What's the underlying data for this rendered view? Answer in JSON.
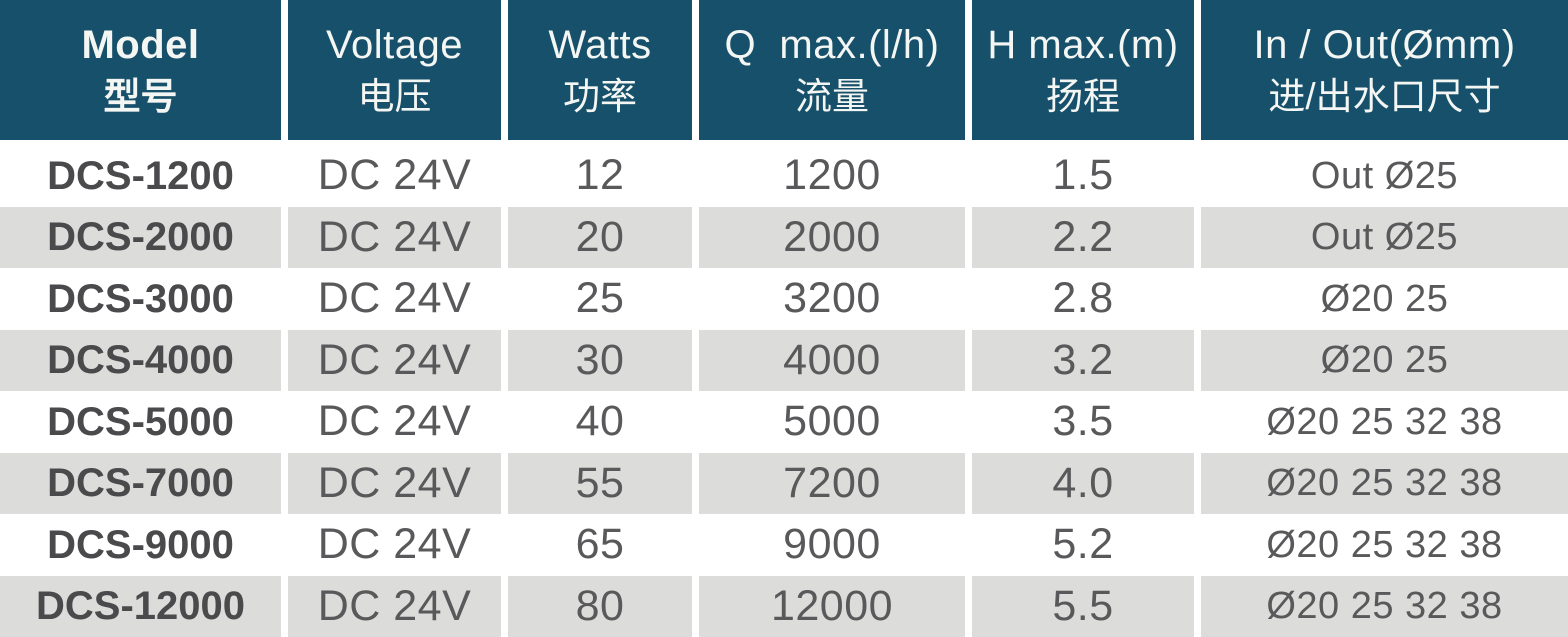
{
  "table": {
    "columns": [
      {
        "en": "Model",
        "zh": "型号"
      },
      {
        "en": "Voltage",
        "zh": "电压"
      },
      {
        "en": "Watts",
        "zh": "功率"
      },
      {
        "en": "Q  max.(l/h)",
        "zh": "流量"
      },
      {
        "en": "H max.(m)",
        "zh": "扬程"
      },
      {
        "en": "In / Out(Ømm)",
        "zh": "进/出水口尺寸"
      }
    ],
    "rows": [
      {
        "model": "DCS-1200",
        "voltage": "DC 24V",
        "watts": "12",
        "q_max": "1200",
        "h_max": "1.5",
        "in_out": "Out Ø25"
      },
      {
        "model": "DCS-2000",
        "voltage": "DC 24V",
        "watts": "20",
        "q_max": "2000",
        "h_max": "2.2",
        "in_out": "Out Ø25"
      },
      {
        "model": "DCS-3000",
        "voltage": "DC 24V",
        "watts": "25",
        "q_max": "3200",
        "h_max": "2.8",
        "in_out": "Ø20 25"
      },
      {
        "model": "DCS-4000",
        "voltage": "DC 24V",
        "watts": "30",
        "q_max": "4000",
        "h_max": "3.2",
        "in_out": "Ø20 25"
      },
      {
        "model": "DCS-5000",
        "voltage": "DC 24V",
        "watts": "40",
        "q_max": "5000",
        "h_max": "3.5",
        "in_out": "Ø20 25 32 38"
      },
      {
        "model": "DCS-7000",
        "voltage": "DC 24V",
        "watts": "55",
        "q_max": "7200",
        "h_max": "4.0",
        "in_out": "Ø20 25 32 38"
      },
      {
        "model": "DCS-9000",
        "voltage": "DC 24V",
        "watts": "65",
        "q_max": "9000",
        "h_max": "5.2",
        "in_out": "Ø20 25 32 38"
      },
      {
        "model": "DCS-12000",
        "voltage": "DC 24V",
        "watts": "80",
        "q_max": "12000",
        "h_max": "5.5",
        "in_out": "Ø20 25 32 38"
      }
    ]
  },
  "colors": {
    "header_bg": "#17506b",
    "header_text": "#f4f6f3",
    "row_bg": "#ffffff",
    "row_alt_bg": "#dcdcda",
    "cell_text": "#59595b",
    "model_text": "#4a4a4c"
  }
}
